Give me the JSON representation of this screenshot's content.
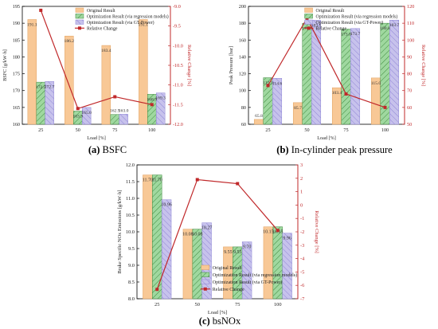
{
  "figure": {
    "captions": [
      {
        "label": "(a)",
        "text": "BSFC"
      },
      {
        "label": "(b)",
        "text": "In-cylinder peak pressure"
      },
      {
        "label": "(c)",
        "text": "bsNOx"
      }
    ]
  },
  "legend_labels": [
    "Original Result",
    "Optimization Result (via regression models)",
    "Optimization Result (via GT-Power)",
    "Relative Change"
  ],
  "colors": {
    "original": "#f8c896",
    "regression": "#9fd89f",
    "gtpower": "#c7c2ec",
    "gtpower_hatch": "#8f86d6",
    "regression_hatch": "#3f8a3f",
    "line": "#c0282a",
    "left_axis": "#222222",
    "right_axis": "#c0282a"
  },
  "chart_data": [
    {
      "id": "a",
      "type": "bar",
      "categories": [
        "25",
        "50",
        "75",
        "100"
      ],
      "xlabel": "Load [%]",
      "ylabel": "BSFC [g/kW·h]",
      "ylabel_right": "Relative Change [%]",
      "ylim": [
        160,
        195
      ],
      "yticks": [
        "160",
        "165",
        "170",
        "175",
        "180",
        "185",
        "190",
        "195"
      ],
      "ylim_right": [
        -12.0,
        -9.0
      ],
      "yticks_right": [
        "-12.0",
        "-11.5",
        "-11.0",
        "-10.5",
        "-10.0",
        "-9.5",
        "-9.0"
      ],
      "series": [
        {
          "name": "Original Result",
          "values": [
            191.1,
            186.2,
            183.4,
            191.1
          ],
          "labels": [
            "191.1",
            "186.2",
            "183.4",
            "191.1"
          ]
        },
        {
          "name": "Optimization Result (via regression models)",
          "values": [
            172.5,
            163.9,
            162.9,
            168.9
          ],
          "labels": [
            "172.5",
            "163.9",
            "162.9",
            "168.9"
          ]
        },
        {
          "name": "Optimization Result (via GT-Power)",
          "values": [
            172.7,
            165.0,
            163.0,
            169.3
          ],
          "labels": [
            "172.7",
            "165.0",
            "163.0",
            "169.3"
          ]
        }
      ],
      "line": {
        "name": "Relative Change",
        "values": [
          -9.1,
          -11.6,
          -11.3,
          -11.5
        ]
      },
      "legend": "top-right"
    },
    {
      "id": "b",
      "type": "bar",
      "categories": [
        "25",
        "50",
        "75",
        "100"
      ],
      "xlabel": "Load [%]",
      "ylabel": "Peak Pressure [bar]",
      "ylabel_right": "Relative Change [%]",
      "ylim": [
        60,
        200
      ],
      "yticks": [
        "60",
        "80",
        "100",
        "120",
        "140",
        "160",
        "180",
        "200"
      ],
      "ylim_right": [
        50,
        120
      ],
      "yticks_right": [
        "50",
        "60",
        "70",
        "80",
        "90",
        "100",
        "110",
        "120"
      ],
      "series": [
        {
          "name": "Original Result",
          "values": [
            65.8,
            85.7,
            103.4,
            115.0
          ],
          "labels": [
            "65.8",
            "85.7",
            "103.4",
            "115.0"
          ]
        },
        {
          "name": "Optimization Result (via regression models)",
          "values": [
            115.3,
            179.8,
            173.0,
            180.0
          ],
          "labels": [
            "115.3",
            "179.8",
            "173.0",
            "180.0"
          ]
        },
        {
          "name": "Optimization Result (via GT-Power)",
          "values": [
            114.6,
            183.5,
            173.7,
            183.7
          ],
          "labels": [
            "114.6",
            "183.5",
            "173.7",
            "183.7"
          ]
        }
      ],
      "line": {
        "name": "Relative Change",
        "values": [
          73,
          113,
          68,
          60
        ]
      },
      "legend": "top-right"
    },
    {
      "id": "c",
      "type": "bar",
      "categories": [
        "25",
        "50",
        "75",
        "100"
      ],
      "xlabel": "Load [%]",
      "ylabel": "Brake Specific NOx Emissions [g/kW·h]",
      "ylabel_right": "Relative Change [%]",
      "ylim": [
        8.0,
        12.0
      ],
      "yticks": [
        "8.0",
        "8.5",
        "9.0",
        "9.5",
        "10.0",
        "10.5",
        "11.0",
        "11.5",
        "12.0"
      ],
      "ylim_right": [
        -7,
        3
      ],
      "yticks_right": [
        "-7",
        "-6",
        "-5",
        "-4",
        "-3",
        "-2",
        "-1",
        "0",
        "1",
        "2",
        "3"
      ],
      "series": [
        {
          "name": "Original Result",
          "values": [
            11.7,
            10.08,
            9.55,
            10.15
          ],
          "labels": [
            "11.70",
            "10.08",
            "9.55",
            "10.15"
          ]
        },
        {
          "name": "Optimization Result (via regression models)",
          "values": [
            11.7,
            10.08,
            9.55,
            10.15
          ],
          "labels": [
            "11.70",
            "10.08",
            "9.55",
            "10.15"
          ]
        },
        {
          "name": "Optimization Result (via GT-Power)",
          "values": [
            10.96,
            10.27,
            9.7,
            9.96
          ],
          "labels": [
            "10.96",
            "10.27",
            "9.70",
            "9.96"
          ]
        }
      ],
      "line": {
        "name": "Relative Change",
        "values": [
          -6.3,
          1.9,
          1.6,
          -1.9
        ]
      },
      "legend": "bottom-right"
    }
  ]
}
